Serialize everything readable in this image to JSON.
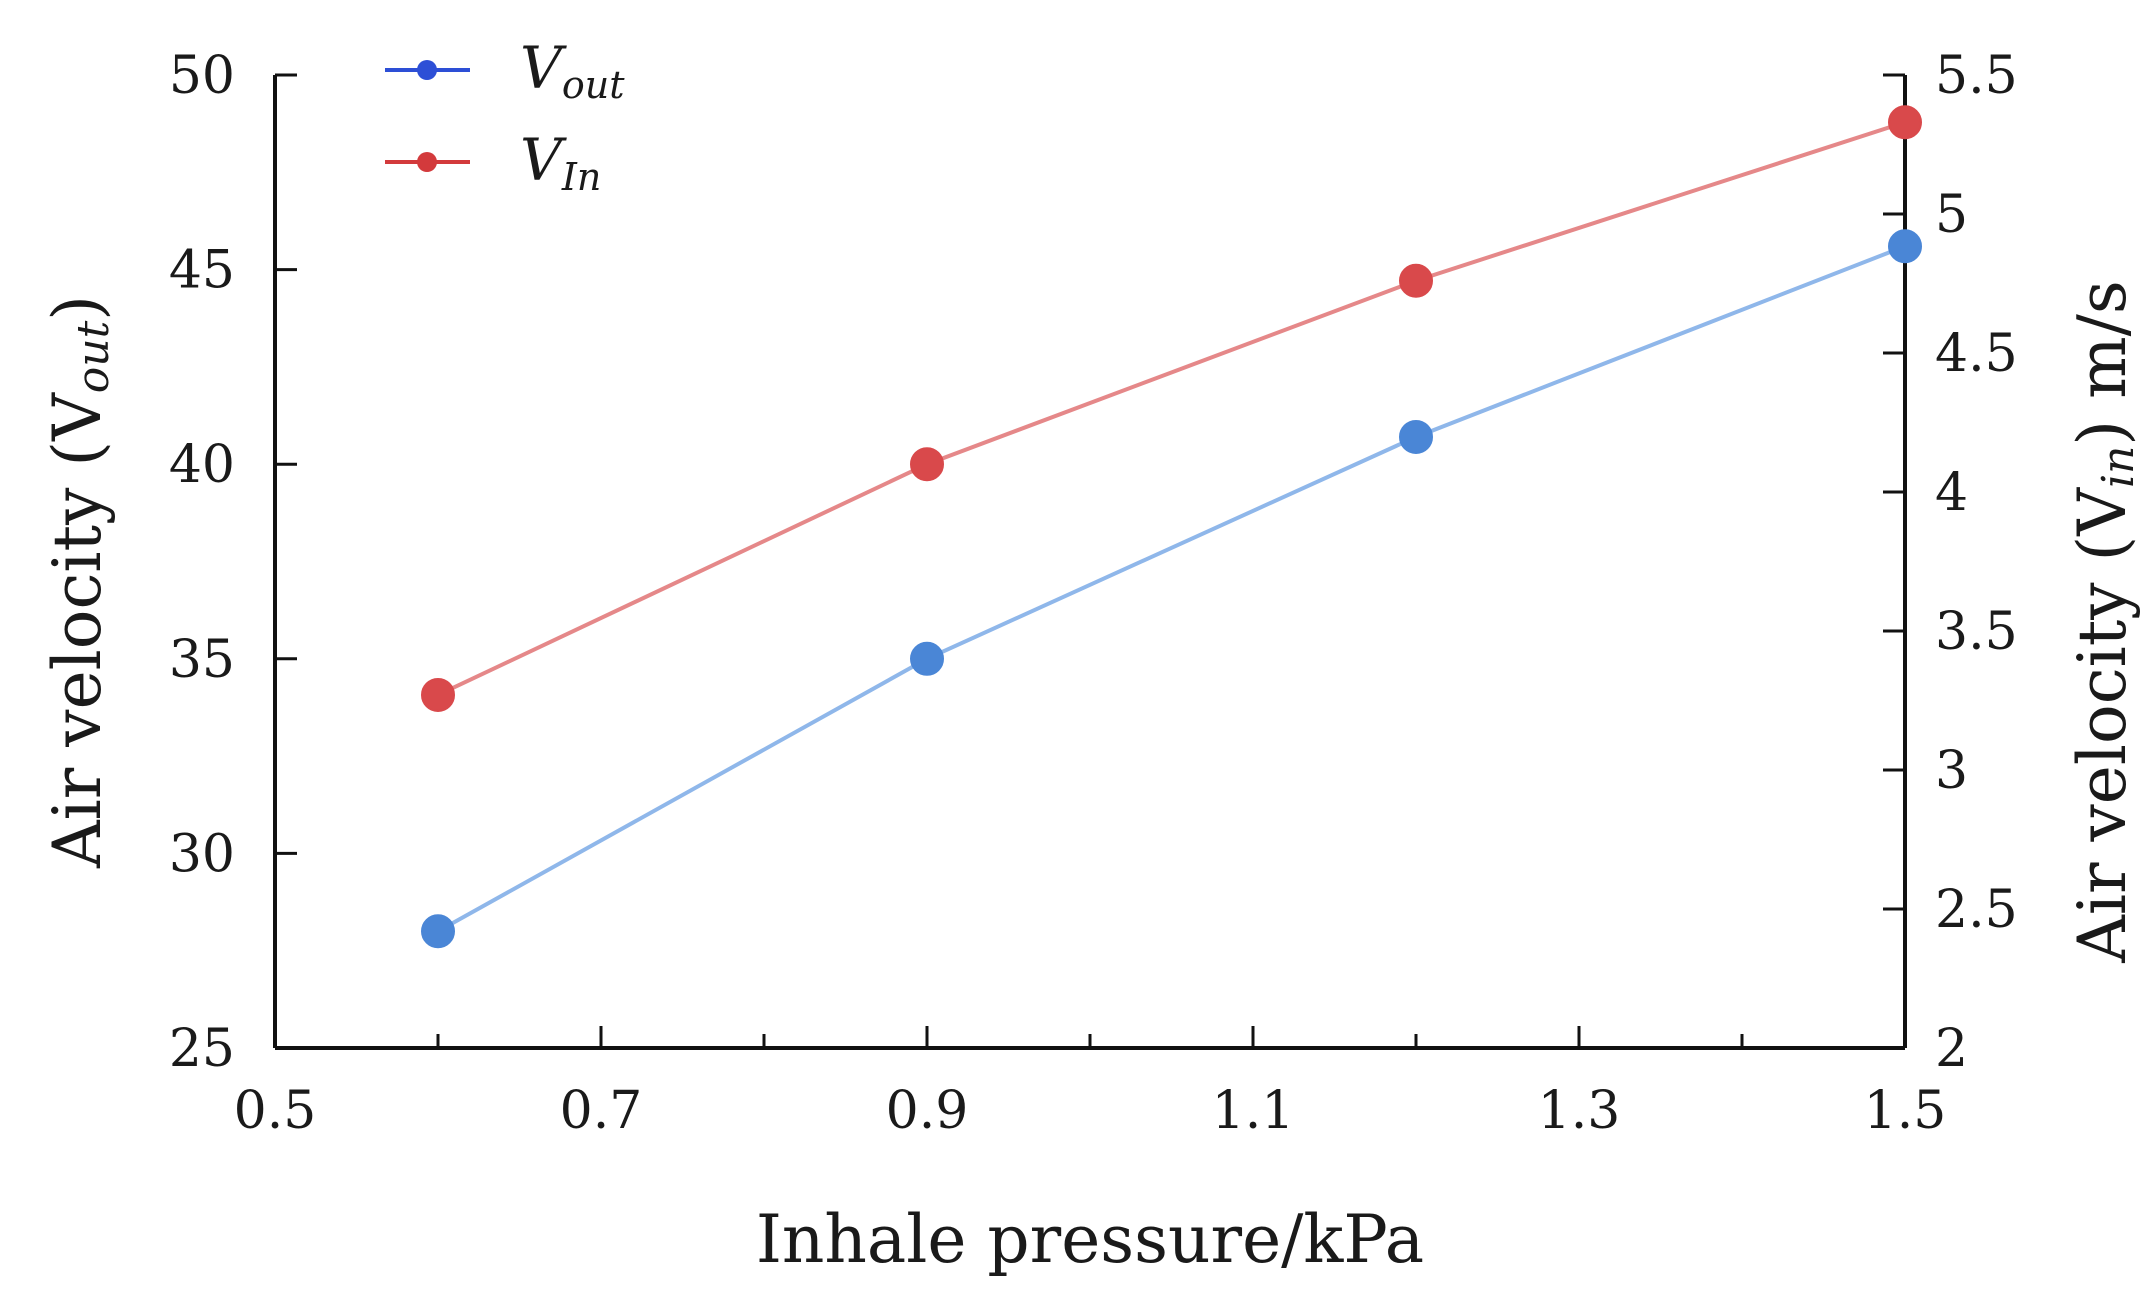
{
  "chart_data": {
    "type": "line",
    "title": "",
    "xlabel": "Inhale pressure/kPa",
    "ylabel_left": {
      "main": "Air velocity (V",
      "sub": "out",
      "tail": ")"
    },
    "ylabel_right": {
      "main": "Air velocity (V",
      "sub": "in",
      "tail": ") m/s"
    },
    "xlim": [
      0.5,
      1.5
    ],
    "x_ticks": [
      0.5,
      0.7,
      0.9,
      1.1,
      1.3,
      1.5
    ],
    "x_tick_labels": [
      "0.5",
      "0.7",
      "0.9",
      "1.1",
      "1.3",
      "1.5"
    ],
    "x_minor_ticks": [
      0.6,
      0.8,
      1.0,
      1.2,
      1.4
    ],
    "ylim_left": [
      25,
      50
    ],
    "y_ticks_left": [
      25,
      30,
      35,
      40,
      45,
      50
    ],
    "y_tick_labels_left": [
      "25",
      "30",
      "35",
      "40",
      "45",
      "50"
    ],
    "ylim_right": [
      2,
      5.5
    ],
    "y_ticks_right": [
      2,
      2.5,
      3,
      3.5,
      4,
      4.5,
      5,
      5.5
    ],
    "y_tick_labels_right": [
      "2",
      "2.5",
      "3",
      "3.5",
      "4",
      "4.5",
      "5",
      "5.5"
    ],
    "grid": false,
    "legend_position": "top-left",
    "series": [
      {
        "name": "V_out",
        "legend_main": "V",
        "legend_sub": "out",
        "axis": "left",
        "color": "#4a86d6",
        "line_color": "#8fb7ea",
        "legend_color": "#2d4fd6",
        "x": [
          0.6,
          0.9,
          1.2,
          1.5
        ],
        "y": [
          28.0,
          35.0,
          40.7,
          45.6
        ]
      },
      {
        "name": "V_in",
        "legend_main": "V",
        "legend_sub": "In",
        "axis": "right",
        "color": "#d9494b",
        "line_color": "#e58889",
        "legend_color": "#d33a3c",
        "x": [
          0.6,
          0.9,
          1.2,
          1.5
        ],
        "y": [
          3.27,
          4.1,
          4.76,
          5.33
        ]
      }
    ]
  }
}
